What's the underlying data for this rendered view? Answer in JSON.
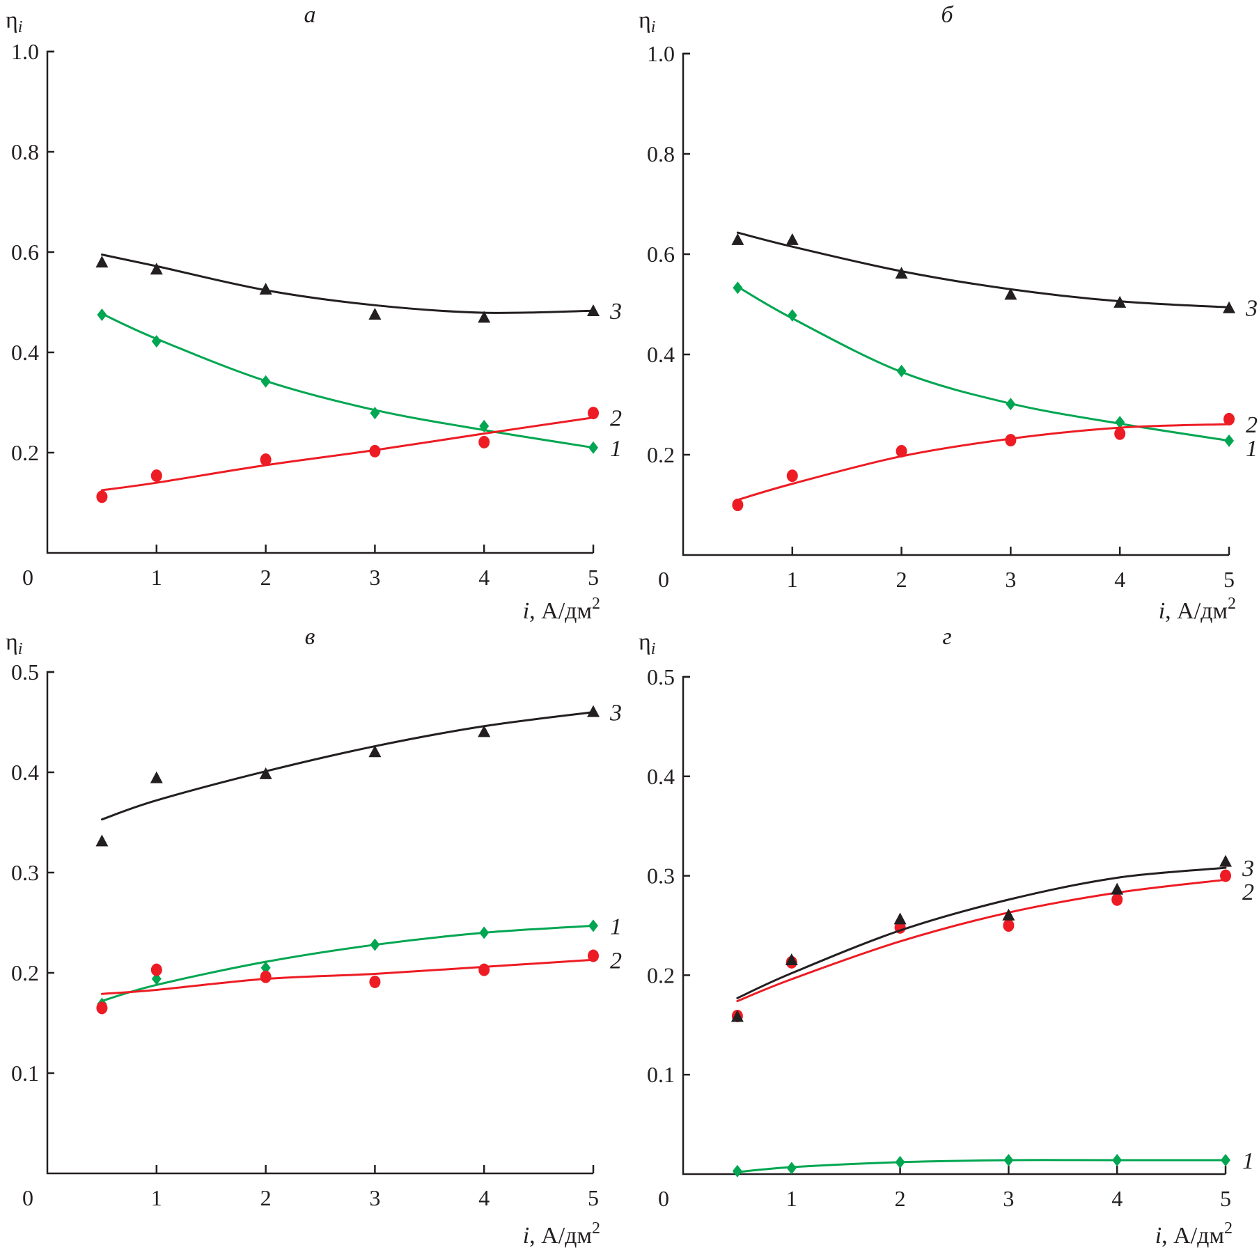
{
  "chart_data": [
    {
      "type": "scatter",
      "panel": "a",
      "title": "а",
      "ylabel": "ηi",
      "xlabel": "i, А/дм²",
      "xlim": [
        0,
        5
      ],
      "ylim": [
        0,
        1.0
      ],
      "xticks": [
        "0",
        "1",
        "2",
        "3",
        "4",
        "5"
      ],
      "yticks": [
        "1.0",
        "0.8",
        "0.6",
        "0.4",
        "0.2"
      ],
      "ytick_values": [
        1.0,
        0.8,
        0.6,
        0.4,
        0.2
      ],
      "x": [
        0.5,
        1,
        2,
        3,
        4,
        5
      ],
      "series": [
        {
          "name": "1",
          "marker": "diamond",
          "color": "#00a651",
          "values": [
            0.475,
            0.422,
            0.342,
            0.279,
            0.253,
            0.21
          ],
          "fit": [
            0.477,
            0.427,
            0.343,
            0.285,
            0.245,
            0.21
          ]
        },
        {
          "name": "2",
          "marker": "circle",
          "color": "#ed1c24",
          "values": [
            0.112,
            0.154,
            0.186,
            0.203,
            0.221,
            0.279
          ],
          "fit": [
            0.125,
            0.14,
            0.175,
            0.205,
            0.238,
            0.27
          ]
        },
        {
          "name": "3",
          "marker": "triangle",
          "color": "#231f20",
          "values": [
            0.579,
            0.565,
            0.525,
            0.475,
            0.469,
            0.482
          ],
          "fit": [
            0.595,
            0.572,
            0.524,
            0.494,
            0.479,
            0.483
          ]
        }
      ]
    },
    {
      "type": "scatter",
      "panel": "b",
      "title": "б",
      "ylabel": "ηi",
      "xlabel": "i, А/дм²",
      "xlim": [
        0,
        5
      ],
      "ylim": [
        0,
        1.0
      ],
      "xticks": [
        "0",
        "1",
        "2",
        "3",
        "4",
        "5"
      ],
      "yticks": [
        "1.0",
        "0.8",
        "0.6",
        "0.4",
        "0.2"
      ],
      "ytick_values": [
        1.0,
        0.8,
        0.6,
        0.4,
        0.2
      ],
      "x": [
        0.5,
        1,
        2,
        3,
        4,
        5
      ],
      "series": [
        {
          "name": "1",
          "marker": "diamond",
          "color": "#00a651",
          "values": [
            0.533,
            0.478,
            0.367,
            0.301,
            0.265,
            0.228
          ],
          "fit": [
            0.535,
            0.472,
            0.365,
            0.302,
            0.262,
            0.228
          ]
        },
        {
          "name": "2",
          "marker": "circle",
          "color": "#ed1c24",
          "values": [
            0.1,
            0.158,
            0.207,
            0.229,
            0.242,
            0.271
          ],
          "fit": [
            0.11,
            0.142,
            0.197,
            0.232,
            0.254,
            0.261
          ]
        },
        {
          "name": "3",
          "marker": "triangle",
          "color": "#231f20",
          "values": [
            0.628,
            0.628,
            0.561,
            0.519,
            0.503,
            0.492
          ],
          "fit": [
            0.643,
            0.615,
            0.566,
            0.53,
            0.506,
            0.494
          ]
        }
      ]
    },
    {
      "type": "scatter",
      "panel": "c",
      "title": "в",
      "ylabel": "ηi",
      "xlabel": "i, А/дм²",
      "xlim": [
        0,
        5
      ],
      "ylim": [
        0,
        0.5
      ],
      "xticks": [
        "0",
        "1",
        "2",
        "3",
        "4",
        "5"
      ],
      "yticks": [
        "0.5",
        "0.4",
        "0.3",
        "0.2",
        "0.1"
      ],
      "ytick_values": [
        0.5,
        0.4,
        0.3,
        0.2,
        0.1
      ],
      "x": [
        0.5,
        1,
        2,
        3,
        4,
        5
      ],
      "series": [
        {
          "name": "1",
          "marker": "diamond",
          "color": "#00a651",
          "values": [
            0.169,
            0.194,
            0.205,
            0.228,
            0.24,
            0.247
          ],
          "fit": [
            0.172,
            0.188,
            0.211,
            0.228,
            0.24,
            0.247
          ]
        },
        {
          "name": "2",
          "marker": "circle",
          "color": "#ed1c24",
          "values": [
            0.165,
            0.203,
            0.196,
            0.191,
            0.203,
            0.217
          ],
          "fit": [
            0.179,
            0.183,
            0.194,
            0.199,
            0.206,
            0.213
          ]
        },
        {
          "name": "3",
          "marker": "triangle",
          "color": "#231f20",
          "values": [
            0.331,
            0.394,
            0.398,
            0.42,
            0.44,
            0.46
          ],
          "fit": [
            0.353,
            0.372,
            0.401,
            0.426,
            0.446,
            0.46
          ]
        }
      ]
    },
    {
      "type": "scatter",
      "panel": "d",
      "title": "г",
      "ylabel": "ηi",
      "xlabel": "i, А/дм²",
      "xlim": [
        0,
        5
      ],
      "ylim": [
        0,
        0.5
      ],
      "xticks": [
        "0",
        "1",
        "2",
        "3",
        "4",
        "5"
      ],
      "yticks": [
        "0.5",
        "0.4",
        "0.3",
        "0.2",
        "0.1"
      ],
      "ytick_values": [
        0.5,
        0.4,
        0.3,
        0.2,
        0.1
      ],
      "x": [
        0.5,
        1,
        2,
        3,
        4,
        5
      ],
      "series": [
        {
          "name": "1",
          "marker": "diamond",
          "color": "#00a651",
          "values": [
            0.003,
            0.006,
            0.012,
            0.014,
            0.014,
            0.014
          ],
          "fit": [
            0.002,
            0.007,
            0.012,
            0.014,
            0.014,
            0.014
          ]
        },
        {
          "name": "2",
          "marker": "circle",
          "color": "#ed1c24",
          "values": [
            0.159,
            0.213,
            0.248,
            0.25,
            0.276,
            0.3
          ],
          "fit": [
            0.174,
            0.196,
            0.234,
            0.263,
            0.283,
            0.296
          ]
        },
        {
          "name": "3",
          "marker": "triangle",
          "color": "#231f20",
          "values": [
            0.158,
            0.215,
            0.256,
            0.26,
            0.286,
            0.314
          ],
          "fit": [
            0.177,
            0.202,
            0.245,
            0.276,
            0.298,
            0.308
          ]
        }
      ]
    }
  ]
}
